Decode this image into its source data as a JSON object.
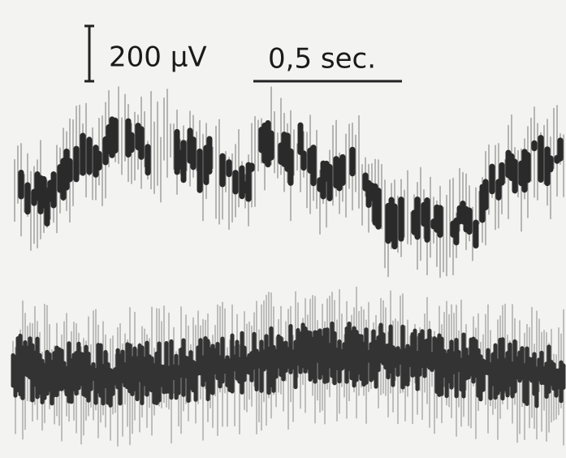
{
  "scale_bars": {
    "amplitude": "200 µV",
    "time": "0,5 sec."
  }
}
